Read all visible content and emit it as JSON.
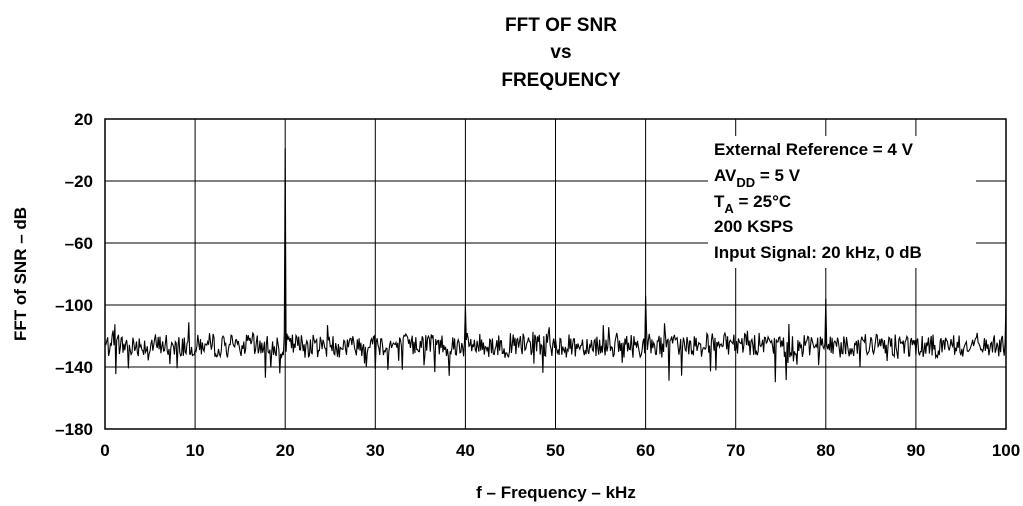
{
  "chart_data": {
    "type": "line",
    "title_lines": [
      "FFT OF SNR",
      "vs",
      "FREQUENCY"
    ],
    "xlabel": "f – Frequency – kHz",
    "ylabel": "FFT of SNR – dB",
    "xlim": [
      0,
      100
    ],
    "ylim": [
      -180,
      20
    ],
    "x_ticks": [
      "0",
      "10",
      "20",
      "30",
      "40",
      "50",
      "60",
      "70",
      "80",
      "90",
      "100"
    ],
    "y_ticks": [
      "20",
      "–20",
      "–60",
      "–100",
      "–140",
      "–180"
    ],
    "grid": true,
    "annotations": [
      {
        "text": "External Reference = 4 V"
      },
      {
        "prefix": "AV",
        "sub": "DD",
        "suffix": " = 5 V"
      },
      {
        "prefix": "T",
        "sub": "A",
        "suffix": " = 25°C"
      },
      {
        "text": "200 KSPS"
      },
      {
        "text": "Input Signal: 20 kHz, 0 dB"
      }
    ],
    "annotation_placement": "top-right",
    "noise_floor_db": [
      -140,
      -113
    ],
    "spurs": [
      {
        "x": 20,
        "y": 1
      },
      {
        "x": 40,
        "y": -100
      },
      {
        "x": 60,
        "y": -94
      },
      {
        "x": 80,
        "y": -96
      },
      {
        "x": 100,
        "y": -97
      }
    ]
  }
}
